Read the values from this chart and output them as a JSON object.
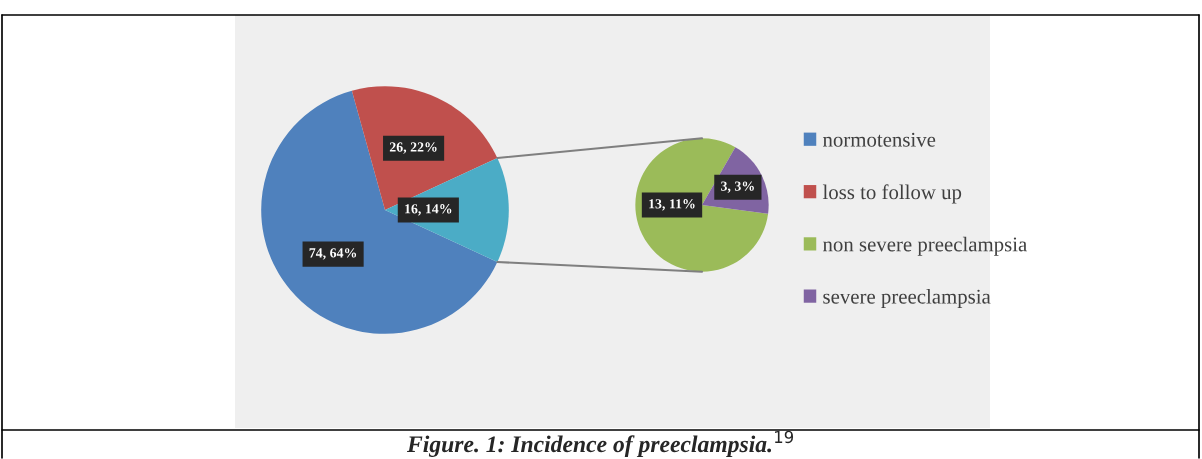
{
  "chart_data": [
    {
      "type": "pie",
      "title": "Figure. 1: Incidence of preeclampsia.$^{19}$",
      "categories": [
        "normotensive",
        "loss to follow up",
        null
      ],
      "values": [
        74,
        26,
        16
      ],
      "colors": [
        "#4f81bd",
        "#c0504d",
        "#4bacc6"
      ],
      "value_labels": [
        "74, 64%",
        "26, 22%",
        "16, 14%"
      ],
      "legend": "right"
    },
    {
      "type": "pie",
      "categories": [
        "non severe preeclampsia",
        "severe preeclampsia"
      ],
      "values": [
        13,
        3
      ],
      "colors": [
        "#9bbb59",
        "#8064a2"
      ],
      "value_labels": [
        "13, 11%",
        "3, 3%"
      ],
      "legend": "right"
    }
  ]
}
